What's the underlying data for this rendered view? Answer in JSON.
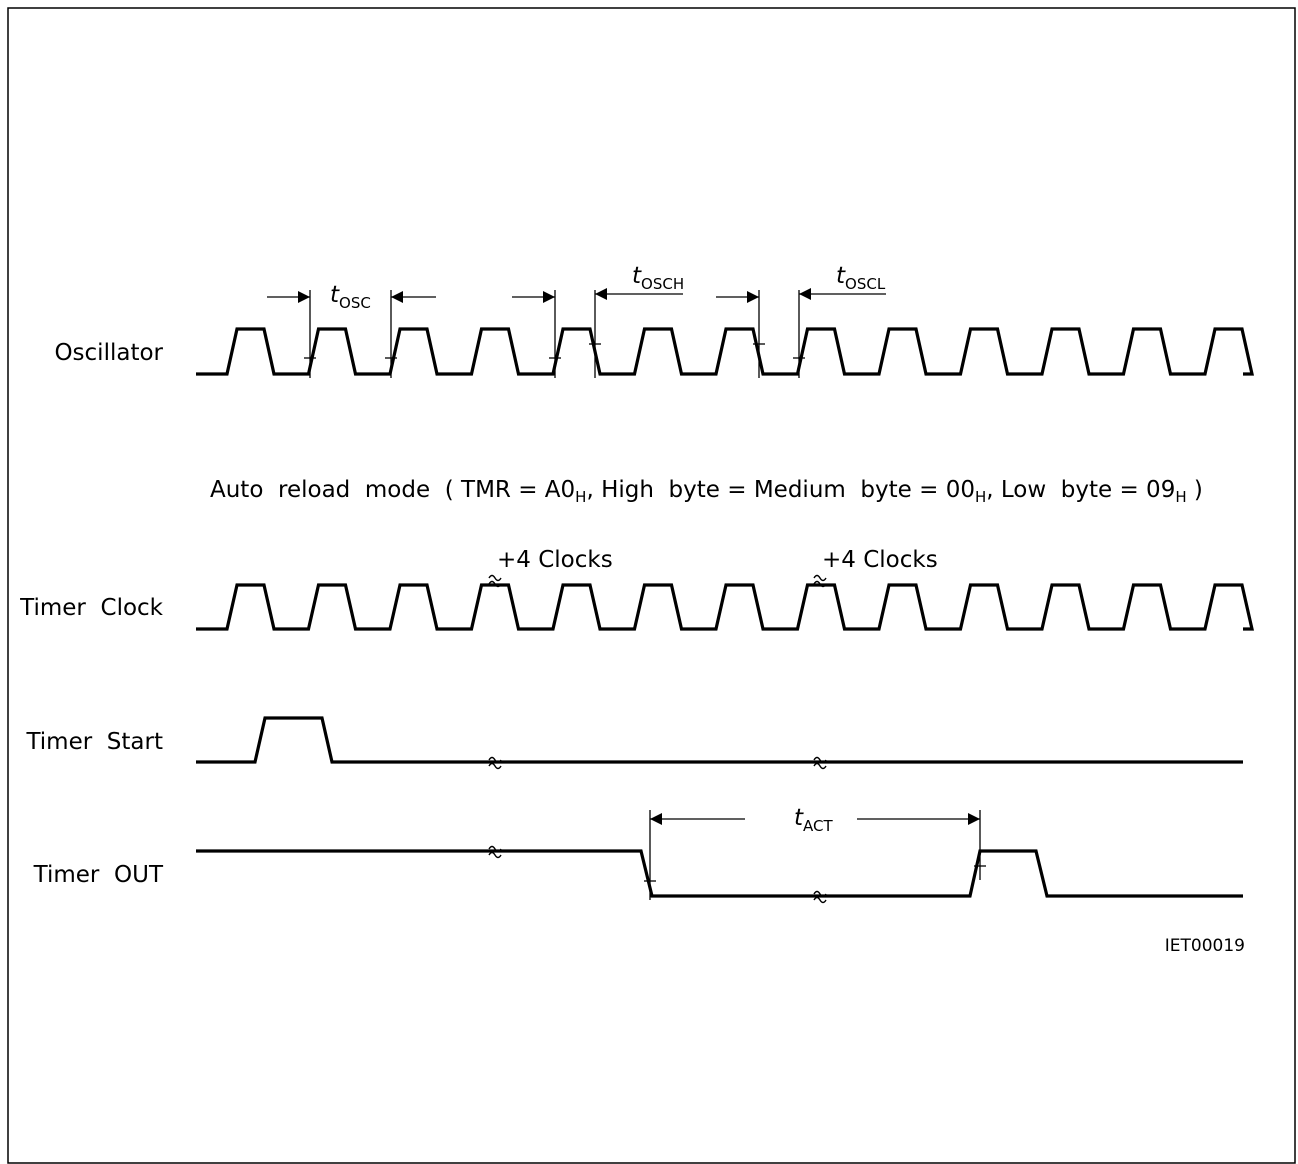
{
  "diagram": {
    "signals": [
      {
        "id": "oscillator",
        "label": "Oscillator"
      },
      {
        "id": "timer-clock",
        "label": "Timer  Clock"
      },
      {
        "id": "timer-start",
        "label": "Timer  Start"
      },
      {
        "id": "timer-out",
        "label": "Timer  OUT"
      }
    ],
    "mode_line": {
      "prefix": "Auto  reload  mode  ( TMR = A0",
      "sub1": "H",
      "mid1": ", High  byte = Medium  byte = 00",
      "sub2": "H",
      "mid2": ", Low  byte = 09",
      "sub3": "H",
      "suffix": " )"
    },
    "clock_notes": [
      "+4 Clocks",
      "+4 Clocks"
    ],
    "timing": {
      "t_osc": {
        "main": "t",
        "sub": "OSC"
      },
      "t_osch": {
        "main": "t",
        "sub": "OSCH"
      },
      "t_oscl": {
        "main": "t",
        "sub": "OSCL"
      },
      "t_act": {
        "main": "t",
        "sub": "ACT"
      }
    },
    "figure_code": "IET00019"
  }
}
